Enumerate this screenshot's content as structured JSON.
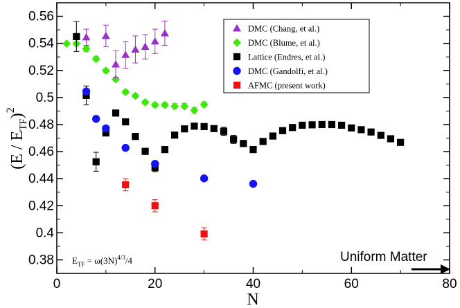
{
  "chart_data": {
    "type": "scatter",
    "title": "",
    "xlabel": "N",
    "ylabel": "(E / E_TF)^2",
    "ylabel_parts": {
      "open": "(E / E",
      "sub": "TF",
      "close": ")",
      "sup": "2"
    },
    "xlim": [
      0,
      80
    ],
    "ylim": [
      0.37,
      0.57
    ],
    "xticks": [
      0,
      20,
      40,
      60,
      80
    ],
    "yticks": [
      0.38,
      0.4,
      0.42,
      0.44,
      0.46,
      0.48,
      0.5,
      0.52,
      0.54,
      0.56
    ],
    "xtick_labels": [
      "0",
      "20",
      "40",
      "60",
      "80"
    ],
    "ytick_labels": [
      "0.38",
      "0.4",
      "0.42",
      "0.44",
      "0.46",
      "0.48",
      "0.5",
      "0.52",
      "0.54",
      "0.56"
    ],
    "grid": false,
    "legend_position": "top-right",
    "series": [
      {
        "name": "DMC (Chang, et al.)",
        "marker": "triangle",
        "color": "#9b30c8",
        "x": [
          6,
          10,
          12,
          14,
          16,
          18,
          20,
          22
        ],
        "y": [
          0.5445,
          0.5455,
          0.5245,
          0.5315,
          0.5355,
          0.5375,
          0.5415,
          0.5475
        ],
        "err": [
          0.006,
          0.008,
          0.01,
          0.01,
          0.01,
          0.009,
          0.009,
          0.009
        ]
      },
      {
        "name": "DMC (Blume, et al.)",
        "marker": "diamond",
        "color": "#3ee80a",
        "x": [
          2,
          4,
          6,
          8,
          10,
          12,
          14,
          16,
          18,
          20,
          22,
          24,
          26,
          28,
          30
        ],
        "y": [
          0.5398,
          0.5398,
          0.536,
          0.5285,
          0.5198,
          0.5135,
          0.504,
          0.5012,
          0.4965,
          0.4945,
          0.4945,
          0.4935,
          0.4935,
          0.4905,
          0.4948
        ],
        "err": [
          0,
          0.0015,
          0.002,
          0.002,
          0.0015,
          0.0015,
          0.0015,
          0.0015,
          0.0015,
          0.0015,
          0.0015,
          0.002,
          0.002,
          0.002,
          0.002
        ]
      },
      {
        "name": "Lattice (Endres, et al.)",
        "marker": "square",
        "color": "#000000",
        "x": [
          4,
          6,
          8,
          10,
          12,
          14,
          16,
          18,
          20,
          22,
          24,
          26,
          28,
          30,
          32,
          34,
          36,
          38,
          40,
          42,
          44,
          46,
          48,
          50,
          52,
          54,
          56,
          58,
          60,
          62,
          64,
          66,
          68,
          70
        ],
        "y": [
          0.545,
          0.5015,
          0.4525,
          0.4738,
          0.4885,
          0.482,
          0.4712,
          0.4602,
          0.4482,
          0.4615,
          0.4722,
          0.4768,
          0.4788,
          0.4785,
          0.477,
          0.475,
          0.469,
          0.466,
          0.4615,
          0.4675,
          0.4715,
          0.4755,
          0.4778,
          0.4795,
          0.4798,
          0.48,
          0.48,
          0.4795,
          0.4775,
          0.4762,
          0.4745,
          0.472,
          0.4695,
          0.4668
        ],
        "err": [
          0.011,
          0.007,
          0.007,
          0.002,
          0.002,
          0.002,
          0.002,
          0.002,
          0.003,
          0.002,
          0.002,
          0.002,
          0.002,
          0.002,
          0.002,
          0.003,
          0.003,
          0.002,
          0.002,
          0.002,
          0.002,
          0.002,
          0.002,
          0.002,
          0.002,
          0.002,
          0.002,
          0.002,
          0.002,
          0.002,
          0.002,
          0.002,
          0.002,
          0.002
        ]
      },
      {
        "name": "DMC (Gandolfi, et al.)",
        "marker": "circle",
        "color": "#1414f0",
        "x": [
          6,
          8,
          10,
          14,
          20,
          30,
          40
        ],
        "y": [
          0.5045,
          0.4842,
          0.4772,
          0.4628,
          0.451,
          0.4402,
          0.4362
        ],
        "err": [
          0,
          0,
          0,
          0,
          0,
          0,
          0
        ]
      },
      {
        "name": "AFMC (present work)",
        "marker": "square",
        "color": "#ee1111",
        "x": [
          14,
          20,
          30
        ],
        "y": [
          0.4355,
          0.42,
          0.3992
        ],
        "err": [
          0.0045,
          0.0045,
          0.0045
        ]
      }
    ],
    "annotations": {
      "formula": {
        "lhs": "E",
        "lhs_sub": "TF",
        "rhs": " = ω(3N)",
        "rhs_sup": "4/3",
        "rhs_tail": "/4"
      },
      "uniform_matter": "Uniform Matter"
    }
  }
}
